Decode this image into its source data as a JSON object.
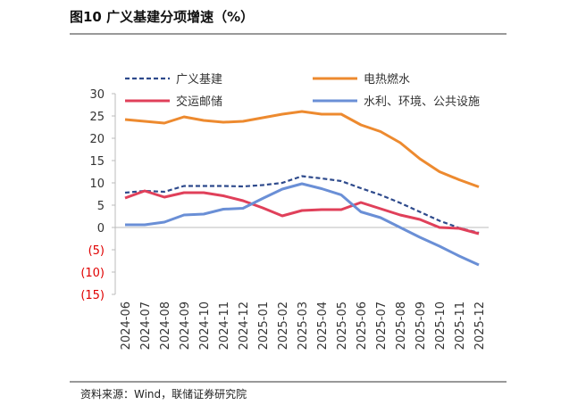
{
  "chart_data": {
    "type": "line",
    "title": "图10 广义基建分项增速（%）",
    "source": "资料来源：Wind，联储证券研究院",
    "categories": [
      "2024-06",
      "2024-07",
      "2024-08",
      "2024-09",
      "2024-10",
      "2024-11",
      "2024-12",
      "2025-01",
      "2025-02",
      "2025-03",
      "2025-04",
      "2025-05",
      "2025-06",
      "2025-07",
      "2025-08",
      "2025-09",
      "2025-10",
      "2025-11",
      "2025-12"
    ],
    "series": [
      {
        "name": "广义基建",
        "color": "#2e4a8c",
        "dashed": true,
        "values": [
          7.8,
          8.2,
          8.0,
          9.3,
          9.3,
          9.3,
          9.2,
          9.5,
          10.0,
          11.5,
          11.0,
          10.4,
          8.8,
          7.3,
          5.5,
          3.5,
          1.5,
          -0.1,
          -1.2
        ]
      },
      {
        "name": "电热燃水",
        "color": "#ed8a2f",
        "dashed": false,
        "values": [
          24.2,
          23.8,
          23.4,
          24.8,
          24.0,
          23.6,
          23.8,
          24.6,
          25.4,
          26.0,
          25.4,
          25.4,
          23.0,
          21.5,
          19.0,
          15.4,
          12.5,
          10.7,
          9.1
        ]
      },
      {
        "name": "交运邮储",
        "color": "#e0405a",
        "dashed": false,
        "values": [
          6.6,
          8.2,
          6.8,
          7.8,
          7.8,
          7.1,
          6.0,
          4.4,
          2.6,
          3.8,
          4.0,
          4.0,
          5.6,
          4.2,
          2.8,
          1.8,
          0.0,
          -0.2,
          -1.4
        ]
      },
      {
        "name": "水利、环境、公共设施",
        "color": "#6a8fd6",
        "dashed": false,
        "values": [
          0.6,
          0.6,
          1.2,
          2.8,
          3.0,
          4.1,
          4.3,
          6.5,
          8.6,
          9.8,
          8.7,
          7.3,
          3.5,
          2.2,
          0.0,
          -2.2,
          -4.2,
          -6.4,
          -8.4
        ]
      }
    ],
    "ylim": [
      -15,
      30
    ],
    "yticks": [
      {
        "value": -15,
        "label": "(15)"
      },
      {
        "value": -10,
        "label": "(10)"
      },
      {
        "value": -5,
        "label": "(5)"
      },
      0,
      5,
      10,
      15,
      20,
      25,
      30
    ],
    "grid": false
  }
}
